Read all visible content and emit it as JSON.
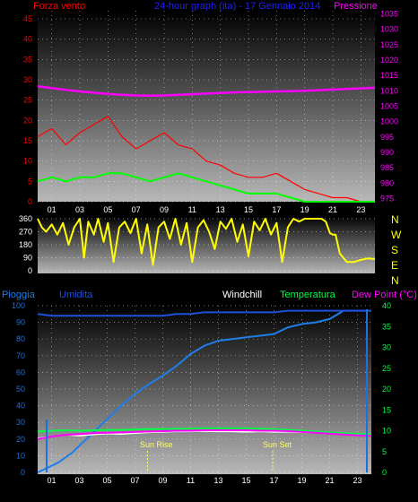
{
  "header": {
    "left": "Forza vento",
    "center": "24-hour graph (ita) - 17 Gennaio 2014",
    "right": "Pressione"
  },
  "colors": {
    "wind": "#ff0000",
    "gust_avg": "#00ff00",
    "pressure": "#ff00ff",
    "direction": "#ffff00",
    "rain": "#1e7ee8",
    "humidity": "#1f4fd8",
    "windchill": "#ffffff",
    "temperature": "#00ff44",
    "dewpoint": "#ff00ff",
    "grid": "#ffffff",
    "axis_blue": "#1e6fe0"
  },
  "compass_labels": [
    "N",
    "W",
    "S",
    "E",
    "N"
  ],
  "bottom_header": {
    "rain": "Pioggia",
    "humidity": "Umidita",
    "windchill": "Windchill",
    "temperature": "Temperatura",
    "dewpoint": "Dew Point (°C)"
  },
  "sun": {
    "rise": "Sun Rise",
    "set": "Sun Set",
    "rise_hour": 7.9,
    "set_hour": 16.9
  },
  "chart_data": [
    {
      "type": "line",
      "title": "24-hour graph (ita) - 17 Gennaio 2014",
      "x_ticks": [
        "01",
        "03",
        "05",
        "07",
        "09",
        "11",
        "13",
        "15",
        "17",
        "19",
        "21",
        "23"
      ],
      "xlim": [
        0,
        24
      ],
      "left_axis": {
        "label": "Forza vento",
        "ticks": [
          0,
          5,
          10,
          15,
          20,
          25,
          30,
          35,
          40,
          45
        ],
        "ylim": [
          0,
          47
        ]
      },
      "right_axis": {
        "label": "Pressione",
        "ticks": [
          975,
          980,
          985,
          990,
          995,
          1000,
          1005,
          1010,
          1015,
          1020,
          1025,
          1030,
          1035
        ],
        "ylim": [
          974,
          1036
        ]
      },
      "series": [
        {
          "name": "Forza vento",
          "axis": "left",
          "x": [
            0,
            1,
            2,
            3,
            4,
            5,
            6,
            7,
            8,
            9,
            10,
            11,
            12,
            13,
            14,
            15,
            16,
            17,
            18,
            19,
            20,
            21,
            22,
            23,
            24
          ],
          "values": [
            16,
            18,
            14,
            17,
            19,
            21,
            16,
            13,
            15,
            17,
            14,
            13,
            10,
            9,
            7,
            6,
            6,
            7,
            5,
            3,
            2,
            1,
            1,
            0,
            0
          ]
        },
        {
          "name": "",
          "axis": "left",
          "x": [
            0,
            1,
            2,
            3,
            4,
            5,
            6,
            7,
            8,
            9,
            10,
            11,
            12,
            13,
            14,
            15,
            16,
            17,
            18,
            19,
            20,
            21,
            22,
            23,
            24
          ],
          "values": [
            5,
            6,
            5,
            6,
            6,
            7,
            7,
            6,
            5,
            6,
            7,
            6,
            5,
            4,
            3,
            2,
            2,
            2,
            1,
            0,
            0,
            0,
            0,
            0,
            0
          ]
        },
        {
          "name": "Pressione",
          "axis": "right",
          "x": [
            0,
            1,
            2,
            3,
            4,
            5,
            6,
            7,
            8,
            9,
            10,
            11,
            12,
            13,
            14,
            15,
            16,
            17,
            18,
            19,
            20,
            21,
            22,
            23,
            24
          ],
          "values": [
            1011.5,
            1010.9,
            1010.3,
            1009.8,
            1009.4,
            1009,
            1008.7,
            1008.5,
            1008.4,
            1008.5,
            1008.7,
            1008.9,
            1009.1,
            1009.3,
            1009.5,
            1009.6,
            1009.7,
            1009.8,
            1009.9,
            1010,
            1010.2,
            1010.4,
            1010.6,
            1010.8,
            1011
          ]
        }
      ]
    },
    {
      "type": "line",
      "title": "",
      "x_ticks": [],
      "xlim": [
        0,
        24
      ],
      "left_axis": {
        "label": "",
        "ticks": [
          0,
          90,
          180,
          270,
          360
        ],
        "ylim": [
          0,
          360
        ]
      },
      "right_axis": {
        "label": "",
        "ticks": [
          "N",
          "W",
          "S",
          "E",
          "N"
        ]
      },
      "series": [
        {
          "name": "",
          "axis": "left",
          "x": [
            0,
            0.3,
            0.6,
            1,
            1.4,
            1.8,
            2.2,
            2.6,
            3,
            3.3,
            3.6,
            4,
            4.3,
            4.7,
            5,
            5.4,
            5.8,
            6.2,
            6.6,
            7,
            7.4,
            7.8,
            8.2,
            8.6,
            9,
            9.4,
            9.8,
            10.2,
            10.6,
            11,
            11.4,
            11.8,
            12.2,
            12.6,
            13,
            13.4,
            13.8,
            14.2,
            14.6,
            15,
            15.4,
            15.8,
            16.2,
            16.6,
            17,
            17.4,
            17.8,
            18.2,
            18.6,
            19,
            19.4,
            19.8,
            20.2,
            20.5,
            20.8,
            21,
            21.2,
            21.5,
            22,
            22.5,
            23,
            23.5,
            24
          ],
          "values": [
            360,
            300,
            270,
            320,
            250,
            330,
            180,
            300,
            360,
            90,
            340,
            250,
            360,
            200,
            330,
            60,
            300,
            340,
            260,
            360,
            120,
            320,
            40,
            300,
            340,
            220,
            360,
            180,
            330,
            60,
            300,
            350,
            270,
            150,
            340,
            290,
            360,
            200,
            320,
            100,
            340,
            280,
            360,
            250,
            330,
            60,
            300,
            360,
            340,
            360,
            360,
            360,
            360,
            340,
            260,
            250,
            250,
            120,
            60,
            60,
            75,
            85,
            80
          ]
        }
      ]
    },
    {
      "type": "line",
      "title": "",
      "x_ticks": [
        "01",
        "03",
        "05",
        "07",
        "09",
        "11",
        "13",
        "15",
        "17",
        "19",
        "21",
        "23"
      ],
      "xlim": [
        0,
        24
      ],
      "left_axis": {
        "label": "Pioggia",
        "ticks": [
          0,
          10,
          20,
          30,
          40,
          50,
          60,
          70,
          80,
          90,
          100
        ],
        "ylim": [
          0,
          100
        ]
      },
      "right_axis": {
        "label": "Dew Point (°C)",
        "ticks": [
          0,
          5,
          10,
          15,
          20,
          25,
          30,
          35,
          40
        ],
        "ylim": [
          0,
          40
        ]
      },
      "series": [
        {
          "name": "Pioggia",
          "axis": "left",
          "x": [
            0,
            0.5,
            1,
            1.5,
            2,
            2.5,
            3,
            3.5,
            4,
            5,
            6,
            7,
            8,
            9,
            10,
            11,
            12,
            13,
            14,
            15,
            16,
            17,
            18,
            19,
            20,
            21,
            22,
            23,
            24
          ],
          "values": [
            0,
            2,
            4,
            6,
            9,
            12,
            16,
            20,
            24,
            32,
            40,
            47,
            53,
            58,
            64,
            71,
            76,
            79,
            80,
            81,
            82,
            83,
            87,
            89,
            90,
            92,
            97,
            97,
            97
          ]
        },
        {
          "name": "Umidita",
          "axis": "left",
          "x": [
            0,
            1,
            2,
            3,
            4,
            5,
            6,
            7,
            8,
            9,
            10,
            11,
            12,
            13,
            14,
            15,
            16,
            17,
            18,
            19,
            20,
            21,
            22,
            23,
            24
          ],
          "values": [
            95,
            94,
            94,
            94,
            94,
            94,
            94,
            94,
            94,
            94,
            95,
            95,
            96,
            96,
            96,
            96,
            96,
            96,
            97,
            97,
            97,
            97,
            97,
            97,
            97
          ]
        },
        {
          "name": "Windchill",
          "axis": "right",
          "x": [
            0,
            1,
            2,
            3,
            4,
            5,
            6,
            7,
            8,
            9,
            10,
            11,
            12,
            13,
            14,
            15,
            16,
            17,
            18,
            19,
            20,
            21,
            22,
            23,
            24
          ],
          "values": [
            8.2,
            8.6,
            9,
            8.8,
            9.1,
            9.3,
            9.2,
            9.4,
            9.6,
            9.7,
            9.8,
            9.8,
            9.9,
            9.8,
            9.8,
            9.7,
            9.8,
            9.7,
            9.7,
            9.6,
            9.5,
            9.4,
            9.3,
            9.2,
            9.1
          ]
        },
        {
          "name": "Temperatura",
          "axis": "right",
          "x": [
            0,
            1,
            2,
            3,
            4,
            5,
            6,
            7,
            8,
            9,
            10,
            11,
            12,
            13,
            14,
            15,
            16,
            17,
            18,
            19,
            20,
            21,
            22,
            23,
            24
          ],
          "values": [
            9.8,
            10,
            10.1,
            10,
            10.1,
            10.2,
            10.2,
            10.3,
            10.4,
            10.4,
            10.5,
            10.5,
            10.6,
            10.6,
            10.6,
            10.6,
            10.5,
            10.4,
            10.2,
            10,
            9.8,
            9.6,
            9.4,
            9.3,
            9.1
          ]
        },
        {
          "name": "Dew Point",
          "axis": "right",
          "x": [
            0,
            1,
            2,
            3,
            4,
            5,
            6,
            7,
            8,
            9,
            10,
            11,
            12,
            13,
            14,
            15,
            16,
            17,
            18,
            19,
            20,
            21,
            22,
            23,
            24
          ],
          "values": [
            8,
            8.6,
            9,
            9.2,
            9.4,
            9.5,
            9.6,
            9.7,
            9.8,
            9.9,
            10,
            10,
            10.1,
            10.1,
            10.1,
            10.1,
            10,
            10,
            9.9,
            9.7,
            9.5,
            9.3,
            9.1,
            8.9,
            8.8
          ]
        }
      ]
    }
  ]
}
